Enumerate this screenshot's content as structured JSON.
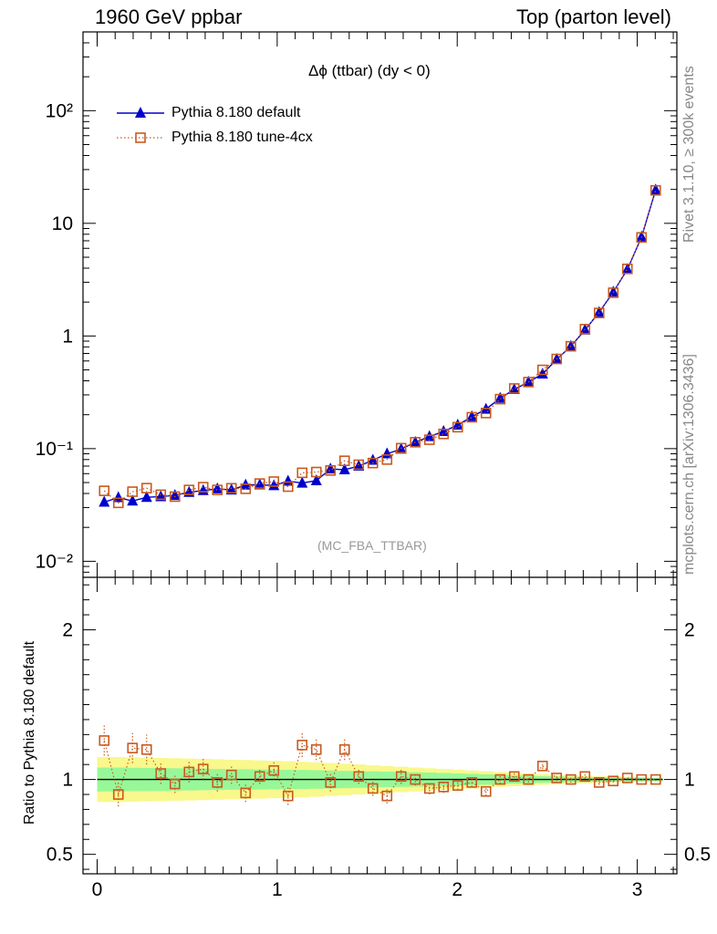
{
  "header": {
    "left": "1960 GeV ppbar",
    "right": "Top (parton level)"
  },
  "side_labels": {
    "rivet": "Rivet 3.1.10, ≥ 300k events",
    "mcplots": "mcplots.cern.ch [arXiv:1306.3436]"
  },
  "plot": {
    "title": "Δϕ (ttbar) (dy < 0)",
    "tag": "(MC_FBA_TTBAR)"
  },
  "legend": {
    "series1": "Pythia 8.180 default",
    "series2": "Pythia 8.180 tune-4cx"
  },
  "ratio": {
    "ylabel": "Ratio to Pythia 8.180 default"
  },
  "colors": {
    "default": "#0000cc",
    "tune": "#c85a1e",
    "band_inner": "#98f898",
    "band_outer": "#f8f88c"
  },
  "chart_data": [
    {
      "type": "line",
      "yscale": "log",
      "xlim": [
        -0.0785,
        3.22
      ],
      "ylim": [
        0.0072,
        500
      ],
      "x_ticks": [
        0,
        1,
        2,
        3
      ],
      "y_ticks": [
        {
          "value": 0.01,
          "label": "10⁻²"
        },
        {
          "value": 0.1,
          "label": "10⁻¹"
        },
        {
          "value": 1,
          "label": "1"
        },
        {
          "value": 10,
          "label": "10"
        },
        {
          "value": 100,
          "label": "10²"
        }
      ],
      "legend_position": "top-left",
      "x": [
        0.0393,
        0.1178,
        0.1963,
        0.2749,
        0.3534,
        0.432,
        0.5105,
        0.589,
        0.6676,
        0.7461,
        0.8247,
        0.9032,
        0.9817,
        1.0603,
        1.1388,
        1.2174,
        1.2959,
        1.3744,
        1.453,
        1.5315,
        1.6101,
        1.6886,
        1.7671,
        1.8457,
        1.9242,
        2.0028,
        2.0813,
        2.1598,
        2.2384,
        2.3169,
        2.3955,
        2.474,
        2.5525,
        2.6311,
        2.7096,
        2.7882,
        2.8667,
        2.9452,
        3.0238,
        3.1023
      ],
      "series": [
        {
          "name": "Pythia 8.180 default",
          "values": [
            0.0335,
            0.0368,
            0.0343,
            0.037,
            0.0375,
            0.0385,
            0.041,
            0.0425,
            0.044,
            0.043,
            0.0475,
            0.0478,
            0.047,
            0.0515,
            0.0495,
            0.052,
            0.066,
            0.065,
            0.07,
            0.079,
            0.09,
            0.099,
            0.114,
            0.128,
            0.142,
            0.162,
            0.192,
            0.224,
            0.28,
            0.335,
            0.39,
            0.46,
            0.62,
            0.81,
            1.13,
            1.62,
            2.45,
            3.9,
            7.55,
            19.8
          ]
        },
        {
          "name": "Pythia 8.180 tune-4cx",
          "values": [
            0.0422,
            0.033,
            0.0415,
            0.0446,
            0.039,
            0.0375,
            0.043,
            0.0455,
            0.043,
            0.0445,
            0.044,
            0.049,
            0.051,
            0.046,
            0.061,
            0.062,
            0.064,
            0.078,
            0.072,
            0.0745,
            0.08,
            0.101,
            0.114,
            0.12,
            0.135,
            0.155,
            0.19,
            0.207,
            0.275,
            0.342,
            0.39,
            0.5,
            0.625,
            0.81,
            1.15,
            1.6,
            2.42,
            3.94,
            7.5,
            19.6
          ]
        }
      ]
    },
    {
      "type": "line",
      "xlim": [
        -0.0785,
        3.22
      ],
      "ylim": [
        0.37,
        2.35
      ],
      "x_ticks": [
        0,
        1,
        2,
        3
      ],
      "y_ticks": [
        0.5,
        1,
        2
      ],
      "ylabel": "Ratio to Pythia 8.180 default",
      "x": [
        0.0393,
        0.1178,
        0.1963,
        0.2749,
        0.3534,
        0.432,
        0.5105,
        0.589,
        0.6676,
        0.7461,
        0.8247,
        0.9032,
        0.9817,
        1.0603,
        1.1388,
        1.2174,
        1.2959,
        1.3744,
        1.453,
        1.5315,
        1.6101,
        1.6886,
        1.7671,
        1.8457,
        1.9242,
        2.0028,
        2.0813,
        2.1598,
        2.2384,
        2.3169,
        2.3955,
        2.474,
        2.5525,
        2.6311,
        2.7096,
        2.7882,
        2.8667,
        2.9452,
        3.0238,
        3.1023
      ],
      "reference": 1.0,
      "band_inner": [
        0.08,
        0.08,
        0.078,
        0.077,
        0.076,
        0.075,
        0.073,
        0.072,
        0.07,
        0.069,
        0.068,
        0.067,
        0.066,
        0.065,
        0.064,
        0.062,
        0.06,
        0.058,
        0.056,
        0.054,
        0.052,
        0.05,
        0.048,
        0.046,
        0.043,
        0.04,
        0.038,
        0.035,
        0.032,
        0.028,
        0.025,
        0.022,
        0.02,
        0.018,
        0.016,
        0.015,
        0.014,
        0.013,
        0.012,
        0.01
      ],
      "band_outer": [
        0.15,
        0.15,
        0.148,
        0.146,
        0.144,
        0.142,
        0.14,
        0.138,
        0.135,
        0.132,
        0.13,
        0.128,
        0.125,
        0.122,
        0.118,
        0.115,
        0.11,
        0.105,
        0.1,
        0.095,
        0.09,
        0.085,
        0.08,
        0.075,
        0.07,
        0.065,
        0.06,
        0.055,
        0.05,
        0.045,
        0.04,
        0.036,
        0.032,
        0.028,
        0.025,
        0.022,
        0.02,
        0.018,
        0.016,
        0.014
      ],
      "series": [
        {
          "name": "Pythia 8.180 tune-4cx",
          "values": [
            1.26,
            0.9,
            1.21,
            1.2,
            1.04,
            0.97,
            1.05,
            1.07,
            0.98,
            1.03,
            0.91,
            1.02,
            1.06,
            0.89,
            1.23,
            1.2,
            0.98,
            1.2,
            1.02,
            0.94,
            0.89,
            1.02,
            1.0,
            0.94,
            0.95,
            0.96,
            0.98,
            0.92,
            1.0,
            1.02,
            1.0,
            1.09,
            1.01,
            1.0,
            1.02,
            0.98,
            0.99,
            1.01,
            1.0,
            1.0
          ],
          "errors": [
            0.1,
            0.08,
            0.1,
            0.1,
            0.07,
            0.06,
            0.07,
            0.07,
            0.06,
            0.06,
            0.06,
            0.05,
            0.06,
            0.06,
            0.08,
            0.07,
            0.06,
            0.07,
            0.05,
            0.05,
            0.05,
            0.05,
            0.04,
            0.04,
            0.04,
            0.03,
            0.03,
            0.03,
            0.03,
            0.03,
            0.02,
            0.02,
            0.02,
            0.02,
            0.015,
            0.015,
            0.01,
            0.01,
            0.01,
            0.01
          ]
        }
      ]
    }
  ]
}
